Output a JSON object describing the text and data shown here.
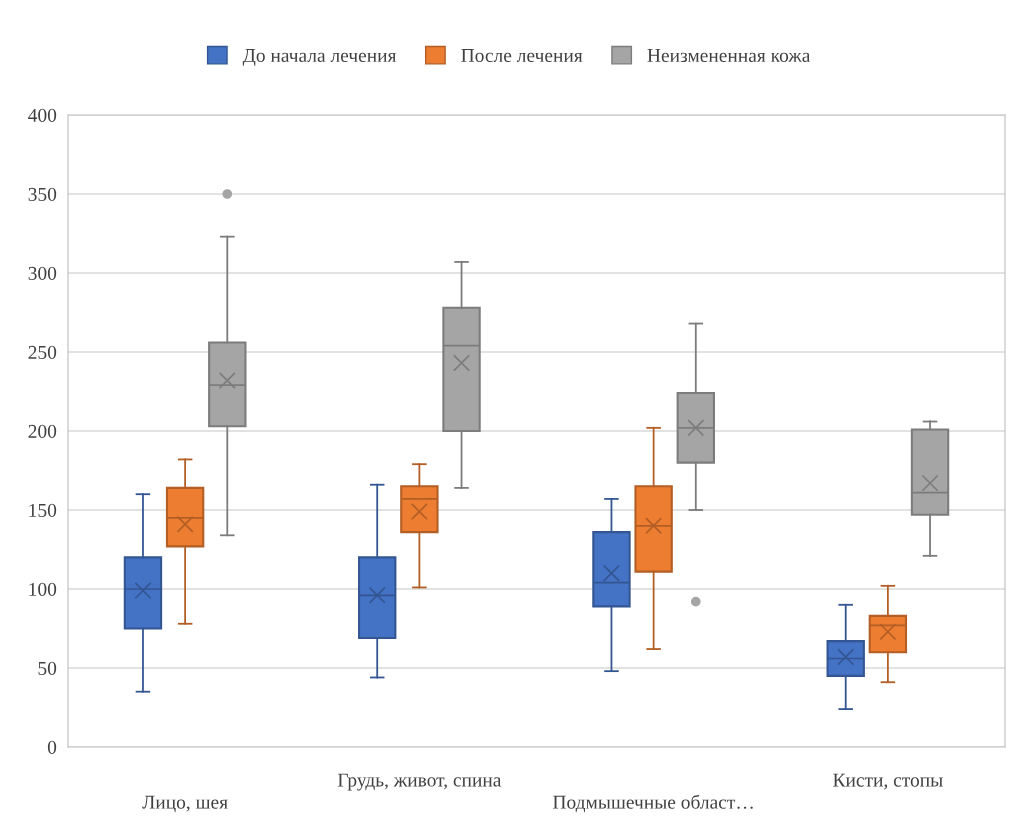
{
  "chart_data": {
    "type": "box",
    "categories": [
      "Лицо, шея",
      "Грудь, живот, спина",
      "Подмышечные област…",
      "Кисти, стопы"
    ],
    "series": [
      {
        "name": "До начала лечения",
        "color": "#4472c4",
        "boxes": [
          {
            "low": 35,
            "q1": 75,
            "median": 100,
            "q3": 120,
            "high": 160,
            "mean": 99
          },
          {
            "low": 44,
            "q1": 69,
            "median": 96,
            "q3": 120,
            "high": 166,
            "mean": 96
          },
          {
            "low": 48,
            "q1": 89,
            "median": 104,
            "q3": 136,
            "high": 157,
            "mean": 110
          },
          {
            "low": 24,
            "q1": 45,
            "median": 56,
            "q3": 67,
            "high": 90,
            "mean": 57
          }
        ]
      },
      {
        "name": "После лечения",
        "color": "#ed7d31",
        "boxes": [
          {
            "low": 78,
            "q1": 127,
            "median": 145,
            "q3": 164,
            "high": 182,
            "mean": 141
          },
          {
            "low": 101,
            "q1": 136,
            "median": 157,
            "q3": 165,
            "high": 179,
            "mean": 149
          },
          {
            "low": 62,
            "q1": 111,
            "median": 140,
            "q3": 165,
            "high": 202,
            "mean": 140
          },
          {
            "low": 41,
            "q1": 60,
            "median": 77,
            "q3": 83,
            "high": 102,
            "mean": 73
          }
        ]
      },
      {
        "name": "Неизмененная кожа",
        "color": "#a5a5a5",
        "boxes": [
          {
            "low": 134,
            "q1": 203,
            "median": 229,
            "q3": 256,
            "high": 323,
            "mean": 232,
            "outliers": [
              350
            ]
          },
          {
            "low": 164,
            "q1": 200,
            "median": 254,
            "q3": 278,
            "high": 307,
            "mean": 243
          },
          {
            "low": 150,
            "q1": 180,
            "median": 202,
            "q3": 224,
            "high": 268,
            "mean": 202,
            "outliers": [
              92
            ]
          },
          {
            "low": 121,
            "q1": 147,
            "median": 161,
            "q3": 201,
            "high": 206,
            "mean": 167
          }
        ]
      }
    ],
    "ylim": [
      0,
      400
    ],
    "yticks": [
      0,
      50,
      100,
      150,
      200,
      250,
      300,
      350,
      400
    ],
    "grid": "y",
    "legend": "top",
    "marker": "cross"
  }
}
